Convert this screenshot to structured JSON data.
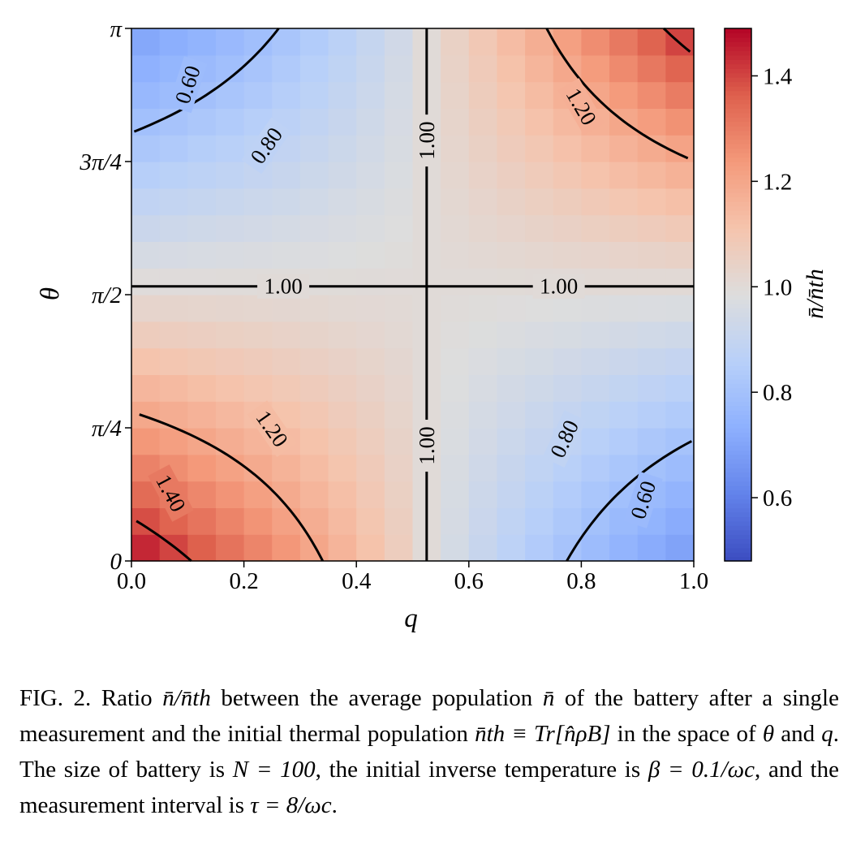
{
  "chart_data": {
    "type": "heatmap",
    "xlabel": "q",
    "ylabel": "θ",
    "colorbar_label": "n̄/n̄th",
    "x_range": [
      0.0,
      1.0
    ],
    "y_range": [
      0,
      3.14159
    ],
    "x_ticks": [
      {
        "value": 0.0,
        "label": "0.0"
      },
      {
        "value": 0.2,
        "label": "0.2"
      },
      {
        "value": 0.4,
        "label": "0.4"
      },
      {
        "value": 0.6,
        "label": "0.6"
      },
      {
        "value": 0.8,
        "label": "0.8"
      },
      {
        "value": 1.0,
        "label": "1.0"
      }
    ],
    "y_ticks": [
      {
        "value": 0,
        "label": "0"
      },
      {
        "value": 0.7854,
        "label": "π/4"
      },
      {
        "value": 1.5708,
        "label": "π/2"
      },
      {
        "value": 2.3562,
        "label": "3π/4"
      },
      {
        "value": 3.14159,
        "label": "π"
      }
    ],
    "colorbar_range": [
      0.48,
      1.49
    ],
    "colorbar_ticks": [
      {
        "value": 0.6,
        "label": "0.6"
      },
      {
        "value": 0.8,
        "label": "0.8"
      },
      {
        "value": 1.0,
        "label": "1.0"
      },
      {
        "value": 1.2,
        "label": "1.2"
      },
      {
        "value": 1.4,
        "label": "1.4"
      }
    ],
    "colormap": "coolwarm",
    "grid_size": [
      20,
      20
    ],
    "center": {
      "q": 0.525,
      "theta": 1.62
    },
    "corner_values": {
      "q0_theta0": 1.49,
      "q1_thetaPi": 1.38,
      "q0_thetaPi": 0.48,
      "q1_theta0": 0.5
    },
    "contour_levels": [
      {
        "level": 0.6,
        "label": "0.60"
      },
      {
        "level": 0.8,
        "label": "0.80"
      },
      {
        "level": 1.0,
        "label": "1.00"
      },
      {
        "level": 1.2,
        "label": "1.20"
      },
      {
        "level": 1.4,
        "label": "1.40"
      }
    ]
  },
  "caption": {
    "fig_label": "FIG. 2.",
    "t1": " Ratio ",
    "ratio": "n̄/n̄th",
    "t2": " between the average population ",
    "nbar": "n̄",
    "t3": " of the battery after a single measurement and the initial thermal population ",
    "nth_def": "n̄th ≡ Tr[n̂ρB]",
    "t4": " in the space of ",
    "theta": "θ",
    "t5": " and ",
    "q": "q",
    "t6": ". The size of battery is ",
    "N": "N = 100",
    "t7": ", the initial inverse temperature is ",
    "beta": "β = 0.1/ωc",
    "t8": ", and the measurement interval is ",
    "tau": "τ = 8/ωc",
    "t9": "."
  }
}
